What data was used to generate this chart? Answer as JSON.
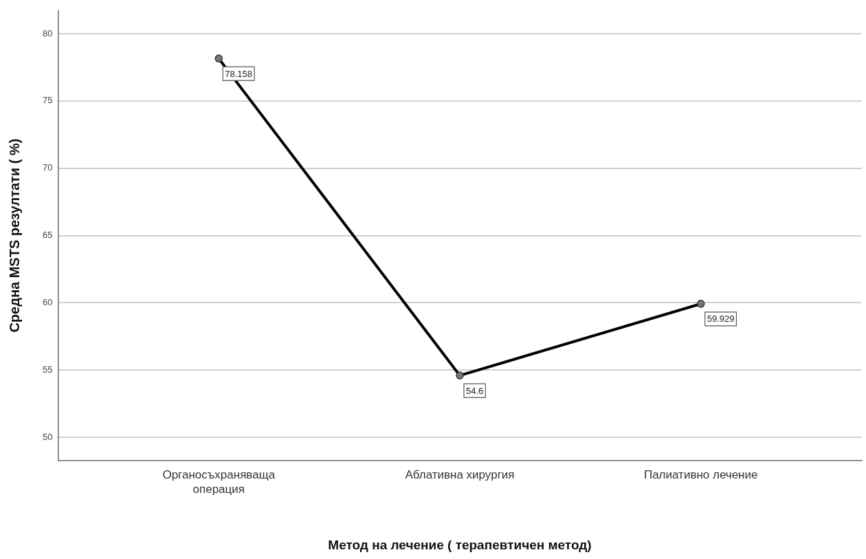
{
  "chart_data": {
    "type": "line",
    "xlabel": "Метод на лечение ( терапевтичен метод)",
    "ylabel": "Средна MSTS резултати ( %)",
    "categories": [
      "Органосъхраняваща операция",
      "Аблативна хирургия",
      "Палиативно лечение"
    ],
    "series": [
      {
        "color": "#000000",
        "values": [
          78.158,
          54.6,
          59.929
        ]
      }
    ],
    "ylim": [
      48.3,
      81.7
    ],
    "yticks": [
      50,
      55,
      60,
      65,
      70,
      75,
      80
    ],
    "grid": "y",
    "legend": false,
    "marker": "circle",
    "line_style": "solid",
    "data_labels": true
  }
}
